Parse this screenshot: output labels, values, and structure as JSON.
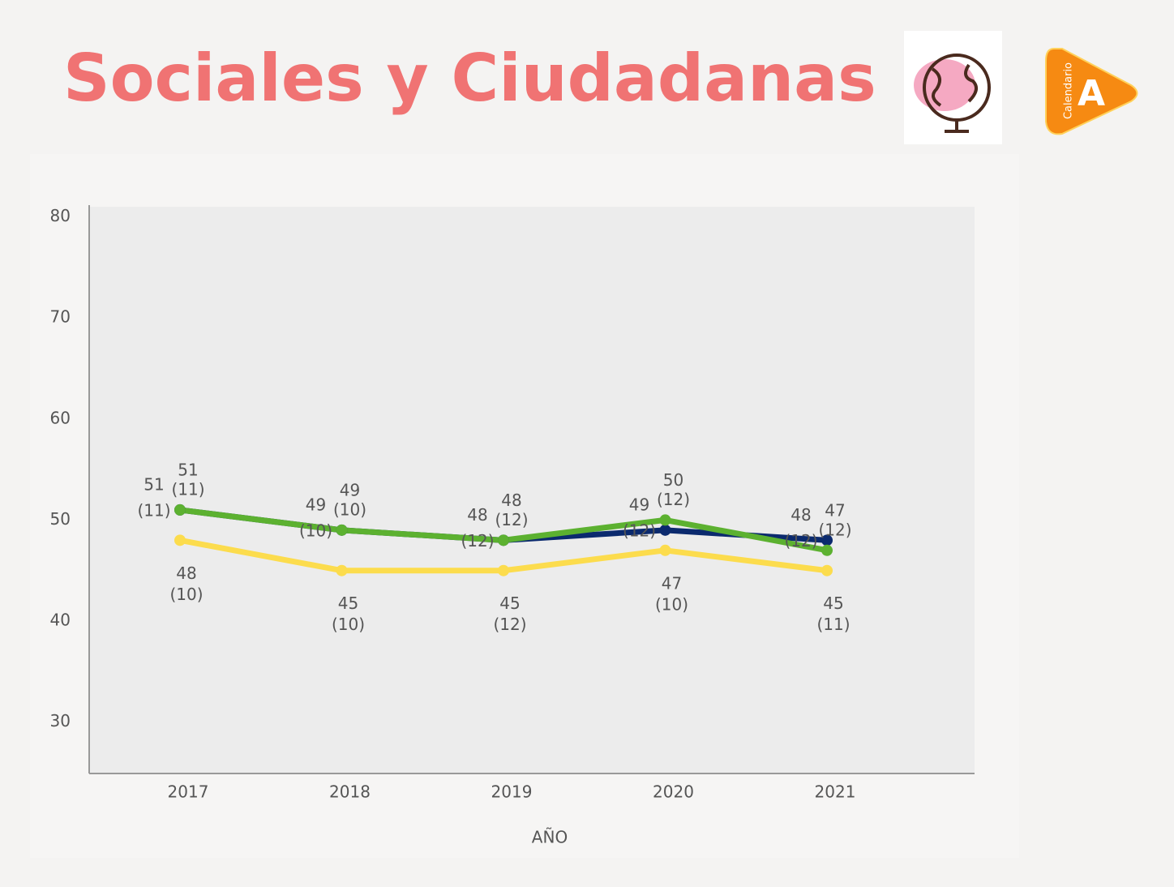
{
  "chart_data": {
    "type": "line",
    "title": "Sociales y Ciudadanas",
    "x_label": "AÑO",
    "categories": [
      "2017",
      "2018",
      "2019",
      "2020",
      "2021"
    ],
    "series": [
      {
        "color": "#fcdc4d",
        "values": [
          48,
          45,
          45,
          47,
          45
        ],
        "sd_labels": [
          "(10)",
          "(10)",
          "(12)",
          "(10)",
          "(11)"
        ]
      },
      {
        "color": "#0b2a6e",
        "values": [
          51,
          49,
          48,
          49,
          48
        ],
        "sd_labels": [
          "(11)",
          "(10)",
          "(12)",
          "(12)",
          "(12)"
        ]
      },
      {
        "color": "#5cb130",
        "values": [
          51,
          49,
          48,
          50,
          47
        ],
        "sd_labels": [
          "(11)",
          "(10)",
          "(12)",
          "(12)",
          "(12)"
        ]
      }
    ],
    "ylim": [
      25,
      81
    ],
    "yticks": [
      30,
      40,
      50,
      60,
      70,
      80
    ]
  },
  "logo": {
    "text": "Calendario",
    "letter": "A"
  }
}
